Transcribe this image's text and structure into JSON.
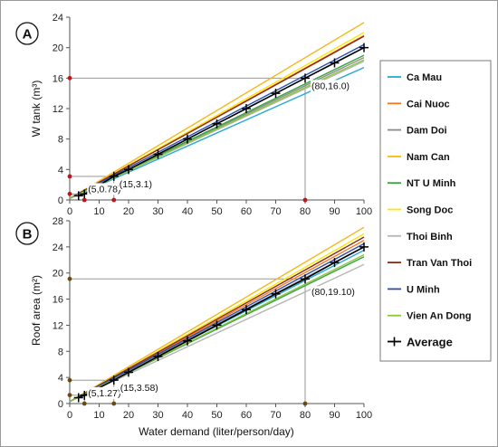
{
  "chart_data": [
    {
      "panel": "A",
      "type": "line",
      "ylabel": "W tank (m³)",
      "xlim": [
        0,
        100
      ],
      "ylim": [
        0,
        24
      ],
      "xticks": [
        0,
        10,
        20,
        30,
        40,
        50,
        60,
        70,
        80,
        90,
        100
      ],
      "yticks": [
        0,
        4,
        8,
        12,
        16,
        20,
        24
      ],
      "series": [
        {
          "name": "Ca Mau",
          "color": "#29a9d6",
          "x": [
            0,
            100
          ],
          "y": [
            0.2,
            17.4
          ]
        },
        {
          "name": "Cai Nuoc",
          "color": "#f47920",
          "x": [
            0,
            100
          ],
          "y": [
            0.2,
            21.6
          ]
        },
        {
          "name": "Dam Doi",
          "color": "#8c8c8c",
          "x": [
            0,
            100
          ],
          "y": [
            0.2,
            18.7
          ]
        },
        {
          "name": "Nam Can",
          "color": "#f5b81d",
          "x": [
            0,
            100
          ],
          "y": [
            0.2,
            23.3
          ]
        },
        {
          "name": "NT U Minh",
          "color": "#3aa245",
          "x": [
            0,
            100
          ],
          "y": [
            0.2,
            19.0
          ]
        },
        {
          "name": "Song Doc",
          "color": "#ffe600",
          "x": [
            0,
            100
          ],
          "y": [
            0.2,
            22.0
          ]
        },
        {
          "name": "Thoi Binh",
          "color": "#b5b5b5",
          "x": [
            0,
            100
          ],
          "y": [
            0.2,
            18.2
          ]
        },
        {
          "name": "Tran Van Thoi",
          "color": "#8b2a0e",
          "x": [
            0,
            100
          ],
          "y": [
            0.2,
            21.5
          ]
        },
        {
          "name": "U Minh",
          "color": "#2a4fb0",
          "x": [
            0,
            100
          ],
          "y": [
            0.2,
            20.4
          ]
        },
        {
          "name": "Vien An Dong",
          "color": "#8cc63f",
          "x": [
            0,
            100
          ],
          "y": [
            0.2,
            18.4
          ]
        },
        {
          "name": "Average",
          "color": "#000000",
          "x": [
            3,
            5,
            15,
            20,
            30,
            40,
            50,
            60,
            70,
            80,
            90,
            100
          ],
          "y": [
            0.55,
            0.78,
            3.1,
            4.0,
            6.0,
            8.0,
            10.0,
            12.0,
            14.0,
            16.0,
            18.0,
            20.0
          ]
        }
      ],
      "annotations": [
        {
          "text": "(5,0.78)",
          "x": 5,
          "y": 0.78
        },
        {
          "text": "(15,3.1)",
          "x": 15,
          "y": 3.1
        },
        {
          "text": "(80,16.0)",
          "x": 80,
          "y": 16.0
        }
      ],
      "reference_points": [
        {
          "x": 0,
          "y": 0.8
        },
        {
          "x": 0,
          "y": 3.1
        },
        {
          "x": 0,
          "y": 16.0
        },
        {
          "x": 5,
          "y": 0
        },
        {
          "x": 15,
          "y": 0
        },
        {
          "x": 80,
          "y": 0
        }
      ],
      "reference_color": "#c0141a"
    },
    {
      "panel": "B",
      "type": "line",
      "ylabel": "Roof area (m²)",
      "xlabel": "Water demand (liter/person/day)",
      "xlim": [
        0,
        100
      ],
      "ylim": [
        0,
        28
      ],
      "xticks": [
        0,
        10,
        20,
        30,
        40,
        50,
        60,
        70,
        80,
        90,
        100
      ],
      "yticks": [
        0,
        4,
        8,
        12,
        16,
        20,
        24,
        28
      ],
      "series": [
        {
          "name": "Ca Mau",
          "color": "#29a9d6",
          "x": [
            0,
            100
          ],
          "y": [
            0.3,
            23.5
          ]
        },
        {
          "name": "Cai Nuoc",
          "color": "#f47920",
          "x": [
            0,
            100
          ],
          "y": [
            0.3,
            25.0
          ]
        },
        {
          "name": "Dam Doi",
          "color": "#8c8c8c",
          "x": [
            0,
            100
          ],
          "y": [
            0.3,
            24.0
          ]
        },
        {
          "name": "Nam Can",
          "color": "#f5b81d",
          "x": [
            0,
            100
          ],
          "y": [
            0.3,
            27.0
          ]
        },
        {
          "name": "NT U Minh",
          "color": "#3aa245",
          "x": [
            0,
            100
          ],
          "y": [
            0.3,
            22.5
          ]
        },
        {
          "name": "Song Doc",
          "color": "#ffe600",
          "x": [
            0,
            100
          ],
          "y": [
            0.3,
            26.0
          ]
        },
        {
          "name": "Thoi Binh",
          "color": "#b5b5b5",
          "x": [
            0,
            100
          ],
          "y": [
            0.3,
            21.3
          ]
        },
        {
          "name": "Tran Van Thoi",
          "color": "#8b2a0e",
          "x": [
            0,
            100
          ],
          "y": [
            0.3,
            25.5
          ]
        },
        {
          "name": "U Minh",
          "color": "#2a4fb0",
          "x": [
            0,
            100
          ],
          "y": [
            0.3,
            24.5
          ]
        },
        {
          "name": "Vien An Dong",
          "color": "#8cc63f",
          "x": [
            0,
            100
          ],
          "y": [
            0.3,
            22.8
          ]
        },
        {
          "name": "Average",
          "color": "#000000",
          "x": [
            3,
            5,
            15,
            20,
            30,
            40,
            50,
            60,
            70,
            80,
            90,
            100
          ],
          "y": [
            0.9,
            1.27,
            3.58,
            4.8,
            7.2,
            9.6,
            12.0,
            14.4,
            16.8,
            19.1,
            21.6,
            24.0
          ]
        }
      ],
      "annotations": [
        {
          "text": "(5,1.27)",
          "x": 5,
          "y": 1.27
        },
        {
          "text": "(15,3.58)",
          "x": 15,
          "y": 3.58
        },
        {
          "text": "(80,19.10)",
          "x": 80,
          "y": 19.1
        }
      ],
      "reference_points": [
        {
          "x": 0,
          "y": 1.3
        },
        {
          "x": 0,
          "y": 3.58
        },
        {
          "x": 0,
          "y": 19.1
        },
        {
          "x": 5,
          "y": 0
        },
        {
          "x": 15,
          "y": 0
        },
        {
          "x": 80,
          "y": 0
        }
      ],
      "reference_color": "#6b4a12"
    }
  ],
  "legend": {
    "entries": [
      "Ca Mau",
      "Cai Nuoc",
      "Dam Doi",
      "Nam Can",
      "NT U Minh",
      "Song Doc",
      "Thoi Binh",
      "Tran Van Thoi",
      "U Minh",
      "Vien An Dong"
    ],
    "colors": [
      "#29a9d6",
      "#f47920",
      "#8c8c8c",
      "#f5b81d",
      "#3aa245",
      "#ffe600",
      "#b5b5b5",
      "#8b2a0e",
      "#2a4fb0",
      "#8cc63f"
    ],
    "average_label": "Average"
  }
}
